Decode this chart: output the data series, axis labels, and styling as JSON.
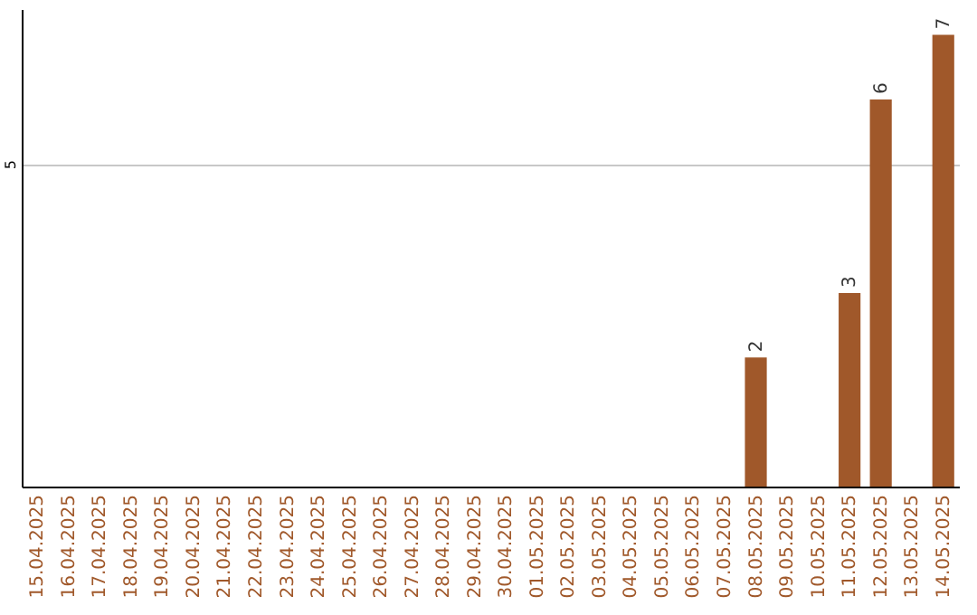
{
  "chart_data": {
    "type": "bar",
    "categories": [
      "15.04.2025",
      "16.04.2025",
      "17.04.2025",
      "18.04.2025",
      "19.04.2025",
      "20.04.2025",
      "21.04.2025",
      "22.04.2025",
      "23.04.2025",
      "24.04.2025",
      "25.04.2025",
      "26.04.2025",
      "27.04.2025",
      "28.04.2025",
      "29.04.2025",
      "30.04.2025",
      "01.05.2025",
      "02.05.2025",
      "03.05.2025",
      "04.05.2025",
      "05.05.2025",
      "06.05.2025",
      "07.05.2025",
      "08.05.2025",
      "09.05.2025",
      "10.05.2025",
      "11.05.2025",
      "12.05.2025",
      "13.05.2025",
      "14.05.2025"
    ],
    "values": [
      null,
      null,
      null,
      null,
      null,
      null,
      null,
      null,
      null,
      null,
      null,
      null,
      null,
      null,
      null,
      null,
      null,
      null,
      null,
      null,
      null,
      null,
      null,
      2,
      null,
      null,
      3,
      6,
      null,
      7
    ],
    "color": "#a0582a",
    "ylim": [
      0,
      7.4
    ],
    "yticks": [
      5
    ],
    "grid": "y",
    "data_labels": true
  }
}
